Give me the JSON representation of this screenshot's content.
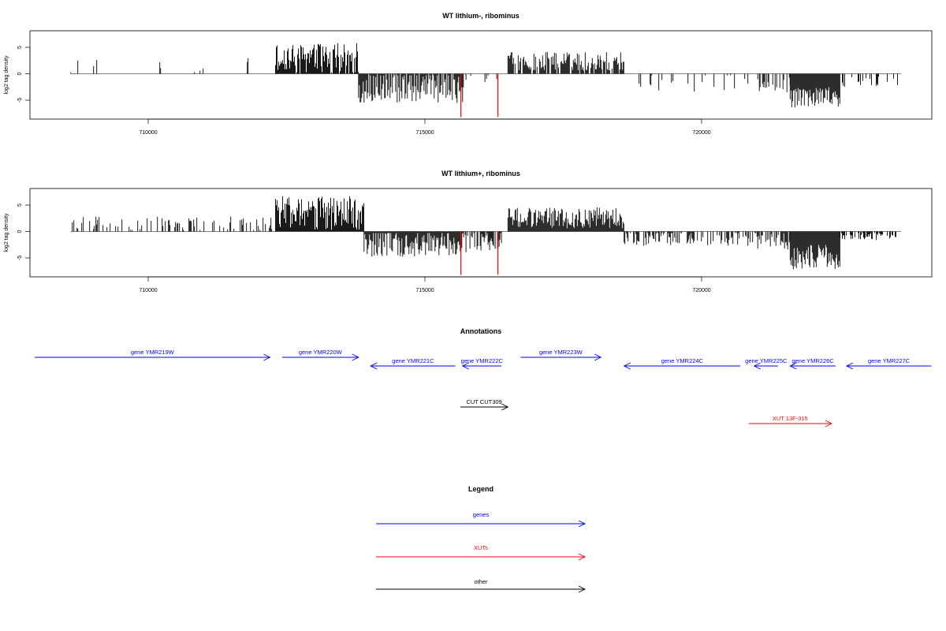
{
  "colors": {
    "genes": "#0000ff",
    "xuts": "#ff0000",
    "other": "#000000",
    "signal": "#000000",
    "highlight": "#ff0000",
    "axis": "#000000"
  },
  "chart_data": [
    {
      "type": "bar",
      "title": "WT lithium-, ribominus",
      "ylabel": "log2 tag density",
      "xlim": [
        708000,
        724000
      ],
      "ylim": [
        -8.5,
        8
      ],
      "xticks": [
        710000,
        715000,
        720000
      ],
      "xtick_labels": [
        "710000",
        "715000",
        "720000"
      ],
      "yticks": [
        -5,
        0,
        5
      ],
      "ytick_labels": [
        "-5",
        "0",
        "5"
      ],
      "baseline_range": [
        708600,
        723600
      ],
      "highlight_bars": [
        {
          "x": 715650,
          "y": -8.2
        },
        {
          "x": 716320,
          "y": -8.2
        }
      ],
      "regions": [
        {
          "start": 708600,
          "end": 712300,
          "sign": 1,
          "mean": 1.6,
          "amp": 1.8,
          "density": 0.06
        },
        {
          "start": 712300,
          "end": 713800,
          "sign": 1,
          "mean": 2.8,
          "amp": 3.0,
          "density": 0.9
        },
        {
          "start": 713800,
          "end": 715700,
          "sign": -1,
          "mean": 2.5,
          "amp": 3.0,
          "density": 0.85
        },
        {
          "start": 715700,
          "end": 716400,
          "sign": -1,
          "mean": 0.8,
          "amp": 1.0,
          "density": 0.12
        },
        {
          "start": 716500,
          "end": 718600,
          "sign": 1,
          "mean": 2.4,
          "amp": 1.8,
          "density": 0.8
        },
        {
          "start": 718600,
          "end": 721000,
          "sign": -1,
          "mean": 1.6,
          "amp": 1.8,
          "density": 0.09
        },
        {
          "start": 721000,
          "end": 721600,
          "sign": -1,
          "mean": 2.2,
          "amp": 1.6,
          "density": 0.5
        },
        {
          "start": 721600,
          "end": 722500,
          "sign": -1,
          "mean": 4.5,
          "amp": 2.0,
          "density": 1.0
        },
        {
          "start": 722500,
          "end": 723600,
          "sign": -1,
          "mean": 1.5,
          "amp": 1.0,
          "density": 0.25
        }
      ]
    },
    {
      "type": "bar",
      "title": "WT lithium+, ribominus",
      "ylabel": "log2 tag density",
      "xlim": [
        708000,
        724000
      ],
      "ylim": [
        -8.5,
        8
      ],
      "xticks": [
        710000,
        715000,
        720000
      ],
      "xtick_labels": [
        "710000",
        "715000",
        "720000"
      ],
      "yticks": [
        -5,
        0,
        5
      ],
      "ytick_labels": [
        "-5",
        "0",
        "5"
      ],
      "baseline_range": [
        708600,
        723600
      ],
      "highlight_bars": [
        {
          "x": 715650,
          "y": -8.2
        },
        {
          "x": 716320,
          "y": -8.2
        }
      ],
      "regions": [
        {
          "start": 708600,
          "end": 712300,
          "sign": 1,
          "mean": 1.5,
          "amp": 1.4,
          "density": 0.35
        },
        {
          "start": 712300,
          "end": 713900,
          "sign": 1,
          "mean": 3.5,
          "amp": 3.2,
          "density": 1.0
        },
        {
          "start": 713900,
          "end": 715700,
          "sign": -1,
          "mean": 2.2,
          "amp": 2.6,
          "density": 1.0
        },
        {
          "start": 715700,
          "end": 716400,
          "sign": -1,
          "mean": 2.0,
          "amp": 2.0,
          "density": 0.7
        },
        {
          "start": 716500,
          "end": 718600,
          "sign": 1,
          "mean": 2.6,
          "amp": 2.0,
          "density": 1.0
        },
        {
          "start": 718600,
          "end": 721000,
          "sign": -1,
          "mean": 1.3,
          "amp": 1.4,
          "density": 0.45
        },
        {
          "start": 721000,
          "end": 721600,
          "sign": -1,
          "mean": 1.8,
          "amp": 1.6,
          "density": 0.7
        },
        {
          "start": 721600,
          "end": 722500,
          "sign": -1,
          "mean": 5.0,
          "amp": 2.5,
          "density": 1.0
        },
        {
          "start": 722500,
          "end": 723600,
          "sign": -1,
          "mean": 0.8,
          "amp": 0.8,
          "density": 0.6
        }
      ]
    }
  ],
  "annotations": {
    "title": "Annotations",
    "features": [
      {
        "label": "gene YMR219W",
        "start": 707950,
        "end": 712200,
        "strand": "+",
        "kind": "genes",
        "row": 0
      },
      {
        "label": "gene YMR220W",
        "start": 712420,
        "end": 713800,
        "strand": "+",
        "kind": "genes",
        "row": 0
      },
      {
        "label": "gene YMR221C",
        "start": 714020,
        "end": 715550,
        "strand": "-",
        "kind": "genes",
        "row": 1
      },
      {
        "label": "gene YMR222C",
        "start": 715680,
        "end": 716380,
        "strand": "-",
        "kind": "genes",
        "row": 1
      },
      {
        "label": "gene YMR223W",
        "start": 716730,
        "end": 718180,
        "strand": "+",
        "kind": "genes",
        "row": 0
      },
      {
        "label": "gene YMR224C",
        "start": 718600,
        "end": 720700,
        "strand": "-",
        "kind": "genes",
        "row": 1
      },
      {
        "label": "gene YMR225C",
        "start": 720950,
        "end": 721380,
        "strand": "-",
        "kind": "genes",
        "row": 1
      },
      {
        "label": "gene YMR226C",
        "start": 721600,
        "end": 722420,
        "strand": "-",
        "kind": "genes",
        "row": 1
      },
      {
        "label": "gene YMR227C",
        "start": 722620,
        "end": 724150,
        "strand": "-",
        "kind": "genes",
        "row": 1
      },
      {
        "label": "CUT CUT309",
        "start": 715640,
        "end": 716500,
        "strand": "+",
        "kind": "other",
        "row": 2
      },
      {
        "label": "XUT 13F-315",
        "start": 720850,
        "end": 722350,
        "strand": "+",
        "kind": "xuts",
        "row": 3
      }
    ]
  },
  "legend": {
    "title": "Legend",
    "items": [
      {
        "label": "genes",
        "kind": "genes"
      },
      {
        "label": "XUTs",
        "kind": "xuts"
      },
      {
        "label": "other",
        "kind": "other"
      }
    ]
  }
}
